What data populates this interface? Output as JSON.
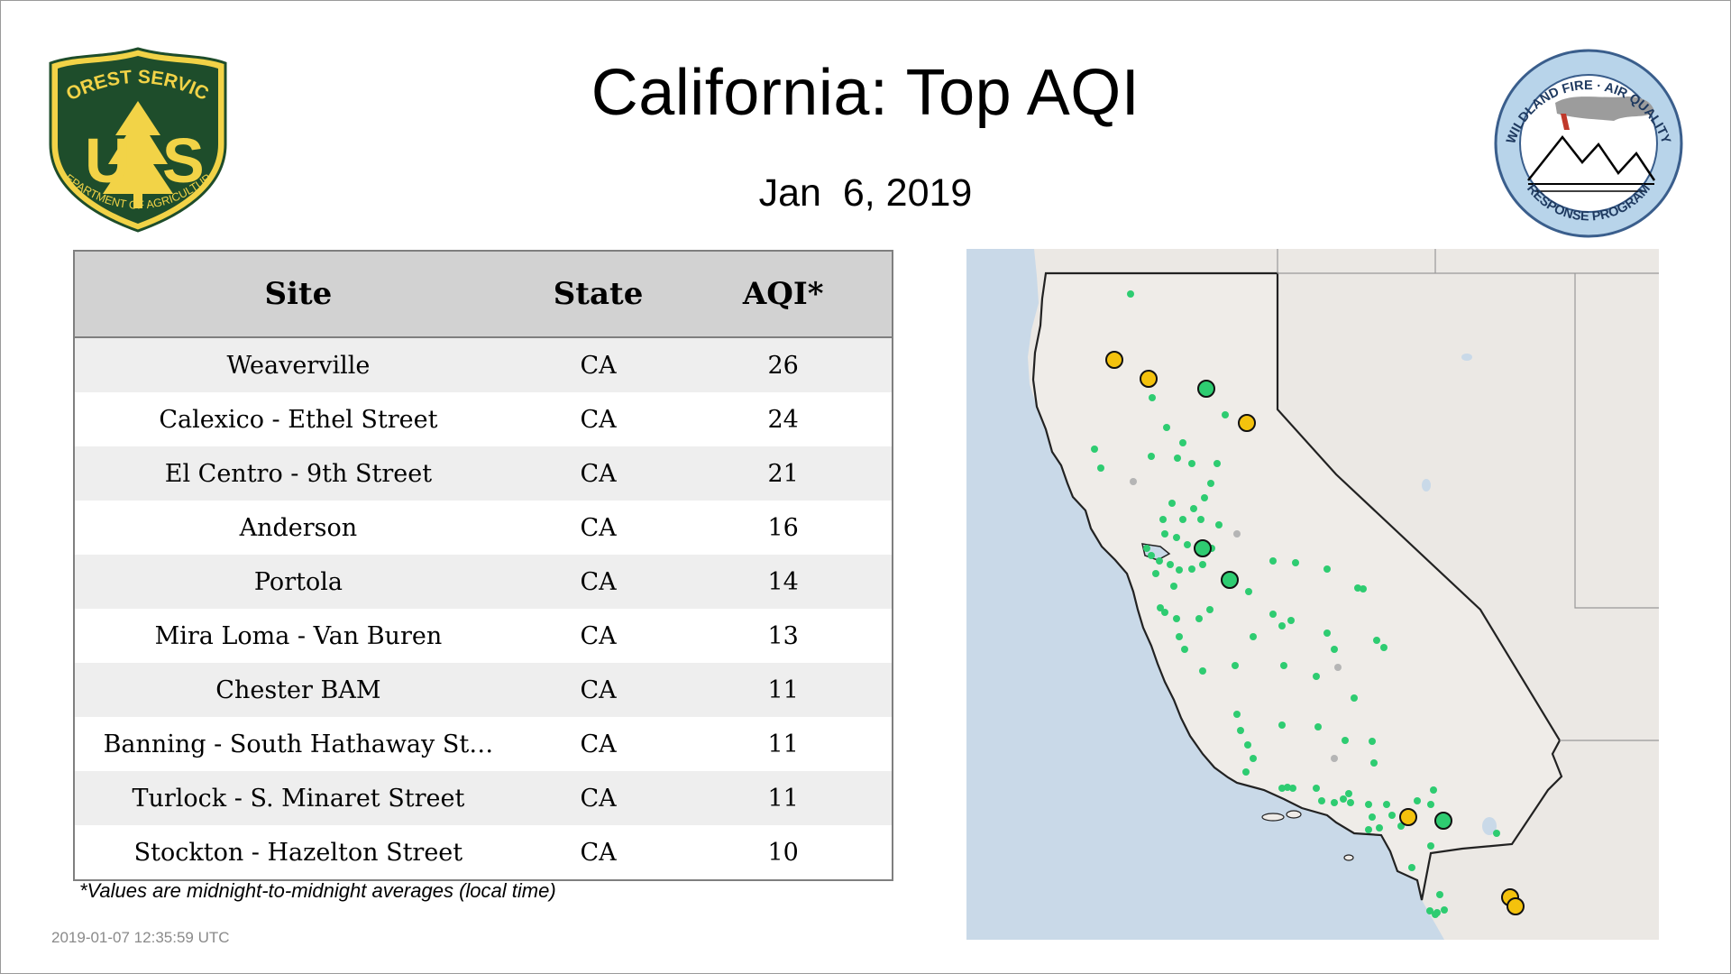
{
  "header": {
    "title": "California: Top AQI",
    "date": "Jan  6, 2019"
  },
  "logos": {
    "forest_service": {
      "top_text": "FOREST SERVICE",
      "shield_letters_left": "U",
      "shield_letters_right": "S",
      "bottom_text": "DEPARTMENT OF AGRICULTURE",
      "colors": {
        "green": "#1e4d2b",
        "gold": "#f2d347"
      }
    },
    "wildland": {
      "top_text": "WILDLAND FIRE · AIR QUALITY",
      "bottom_text": "RESPONSE PROGRAM",
      "colors": {
        "ring": "#b8d4ea",
        "border": "#3a5e8c"
      }
    }
  },
  "table": {
    "headers": {
      "site": "Site",
      "state": "State",
      "aqi": "AQI*"
    },
    "rows": [
      {
        "site": "Weaverville",
        "state": "CA",
        "aqi": "26"
      },
      {
        "site": "Calexico - Ethel Street",
        "state": "CA",
        "aqi": "24"
      },
      {
        "site": "El Centro - 9th Street",
        "state": "CA",
        "aqi": "21"
      },
      {
        "site": "Anderson",
        "state": "CA",
        "aqi": "16"
      },
      {
        "site": "Portola",
        "state": "CA",
        "aqi": "14"
      },
      {
        "site": "Mira Loma - Van Buren",
        "state": "CA",
        "aqi": "13"
      },
      {
        "site": "Chester BAM",
        "state": "CA",
        "aqi": "11"
      },
      {
        "site": "Banning - South Hathaway St…",
        "state": "CA",
        "aqi": "11"
      },
      {
        "site": "Turlock - S. Minaret Street",
        "state": "CA",
        "aqi": "11"
      },
      {
        "site": "Stockton - Hazelton Street",
        "state": "CA",
        "aqi": "10"
      }
    ]
  },
  "footnote": "*Values are midnight-to-midnight averages (local time)",
  "timestamp": "2019-01-07 12:35:59 UTC",
  "map": {
    "colors": {
      "ocean": "#c9d9e8",
      "land": "#ebe8e4",
      "good": "#2ecc71",
      "moderate": "#f4c20d",
      "no_data": "#b5b5b5"
    }
  }
}
